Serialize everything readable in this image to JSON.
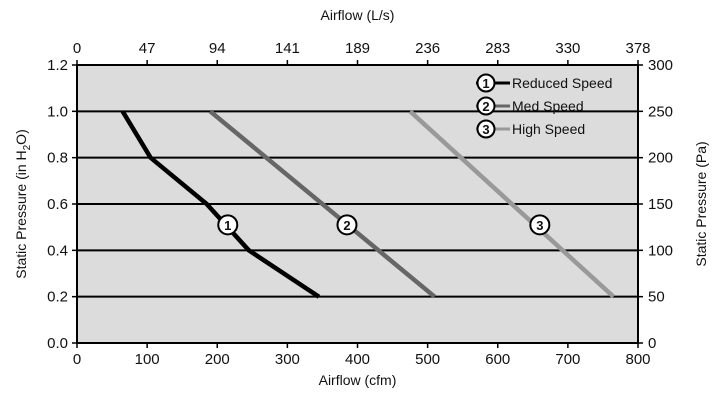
{
  "chart_data": {
    "type": "line",
    "x_axis_bottom": {
      "label": "Airflow (cfm)",
      "range": [
        0,
        800
      ],
      "ticks": [
        "0",
        "100",
        "200",
        "300",
        "400",
        "500",
        "600",
        "700",
        "800"
      ]
    },
    "x_axis_top": {
      "label": "Airflow (L/s)",
      "range": [
        0,
        378
      ],
      "ticks": [
        "0",
        "47",
        "94",
        "141",
        "189",
        "236",
        "283",
        "330",
        "378"
      ]
    },
    "y_axis_left": {
      "label": "Static Pressure (in H2O)",
      "label_main": "Static Pressure (in H",
      "label_sub": "2",
      "label_end": "O)",
      "range": [
        0,
        1.2
      ],
      "ticks": [
        "0.0",
        "0.2",
        "0.4",
        "0.6",
        "0.8",
        "1.0",
        "1.2"
      ]
    },
    "y_axis_right": {
      "label": "Static Pressure (Pa)",
      "range": [
        0,
        300
      ],
      "ticks": [
        "0",
        "50",
        "100",
        "150",
        "200",
        "250",
        "300"
      ]
    },
    "grid": "horizontal",
    "background_color": "#dcdcdc",
    "legend_position": "top-right",
    "series": [
      {
        "name": "Reduced Speed",
        "marker": "1",
        "color": "#000000",
        "points": [
          [
            65,
            1.0
          ],
          [
            105,
            0.8
          ],
          [
            185,
            0.6
          ],
          [
            245,
            0.4
          ],
          [
            345,
            0.2
          ]
        ],
        "marker_point": [
          215,
          0.51
        ]
      },
      {
        "name": "Med Speed",
        "marker": "2",
        "color": "#666666",
        "points": [
          [
            190,
            1.0
          ],
          [
            510,
            0.2
          ]
        ],
        "marker_point": [
          385,
          0.51
        ]
      },
      {
        "name": "High Speed",
        "marker": "3",
        "color": "#999999",
        "points": [
          [
            475,
            1.0
          ],
          [
            765,
            0.2
          ]
        ],
        "marker_point": [
          660,
          0.51
        ]
      }
    ]
  }
}
